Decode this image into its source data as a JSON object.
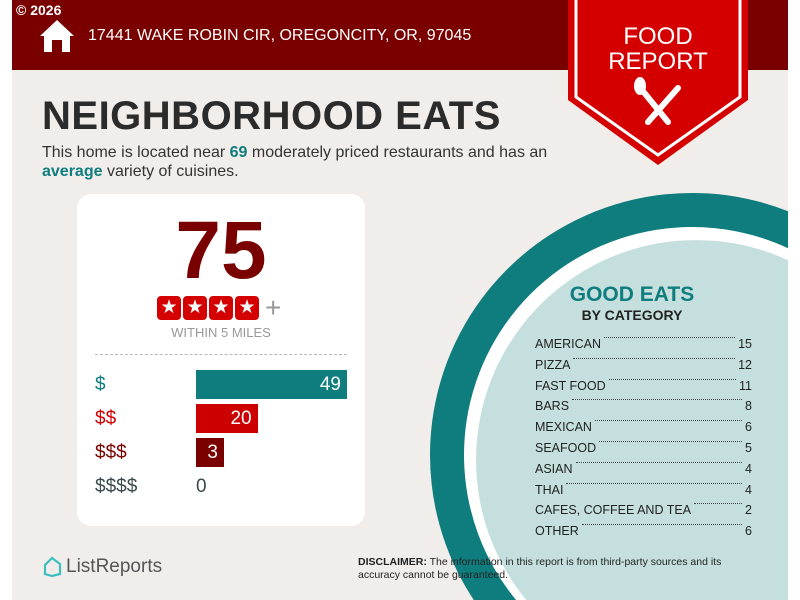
{
  "header": {
    "copyright": "© 2026",
    "address": "17441 WAKE ROBIN CIR, OREGONCITY, OR, 97045",
    "badge_line1": "FOOD",
    "badge_line2": "REPORT"
  },
  "title": "NEIGHBORHOOD EATS",
  "description": {
    "part1": "This home is located near ",
    "count": "69",
    "part2": " moderately priced restaurants and has an ",
    "variety": "average",
    "part3": " variety of cuisines."
  },
  "score_card": {
    "score": "75",
    "stars": 4,
    "plus": "+",
    "within": "WITHIN 5 MILES",
    "price_levels": [
      {
        "label": "$",
        "value": 49,
        "color": "#0f7d7e"
      },
      {
        "label": "$$",
        "value": 20,
        "color": "#cc0000"
      },
      {
        "label": "$$$",
        "value": 3,
        "color": "#7a0000"
      },
      {
        "label": "$$$$",
        "value": 0,
        "color": "#3a4a4a"
      }
    ]
  },
  "good_eats": {
    "title": "GOOD EATS",
    "subtitle": "BY CATEGORY",
    "categories": [
      {
        "name": "AMERICAN",
        "count": "15"
      },
      {
        "name": "PIZZA",
        "count": "12"
      },
      {
        "name": "FAST FOOD",
        "count": "11"
      },
      {
        "name": "BARS",
        "count": "8"
      },
      {
        "name": "MEXICAN",
        "count": "6"
      },
      {
        "name": "SEAFOOD",
        "count": "5"
      },
      {
        "name": "ASIAN",
        "count": "4"
      },
      {
        "name": "THAI",
        "count": "4"
      },
      {
        "name": "CAFES, COFFEE AND TEA",
        "count": "2"
      },
      {
        "name": "OTHER",
        "count": "6"
      }
    ]
  },
  "footer": {
    "logo": "ListReports",
    "disclaimer_label": "DISCLAIMER:",
    "disclaimer": " The information in this report is from third-party sources and its accuracy cannot be guaranteed."
  },
  "colors": {
    "header": "#7a0000",
    "accent_red": "#d40000",
    "teal": "#0f7d7e",
    "light_teal": "#c5dfde"
  }
}
